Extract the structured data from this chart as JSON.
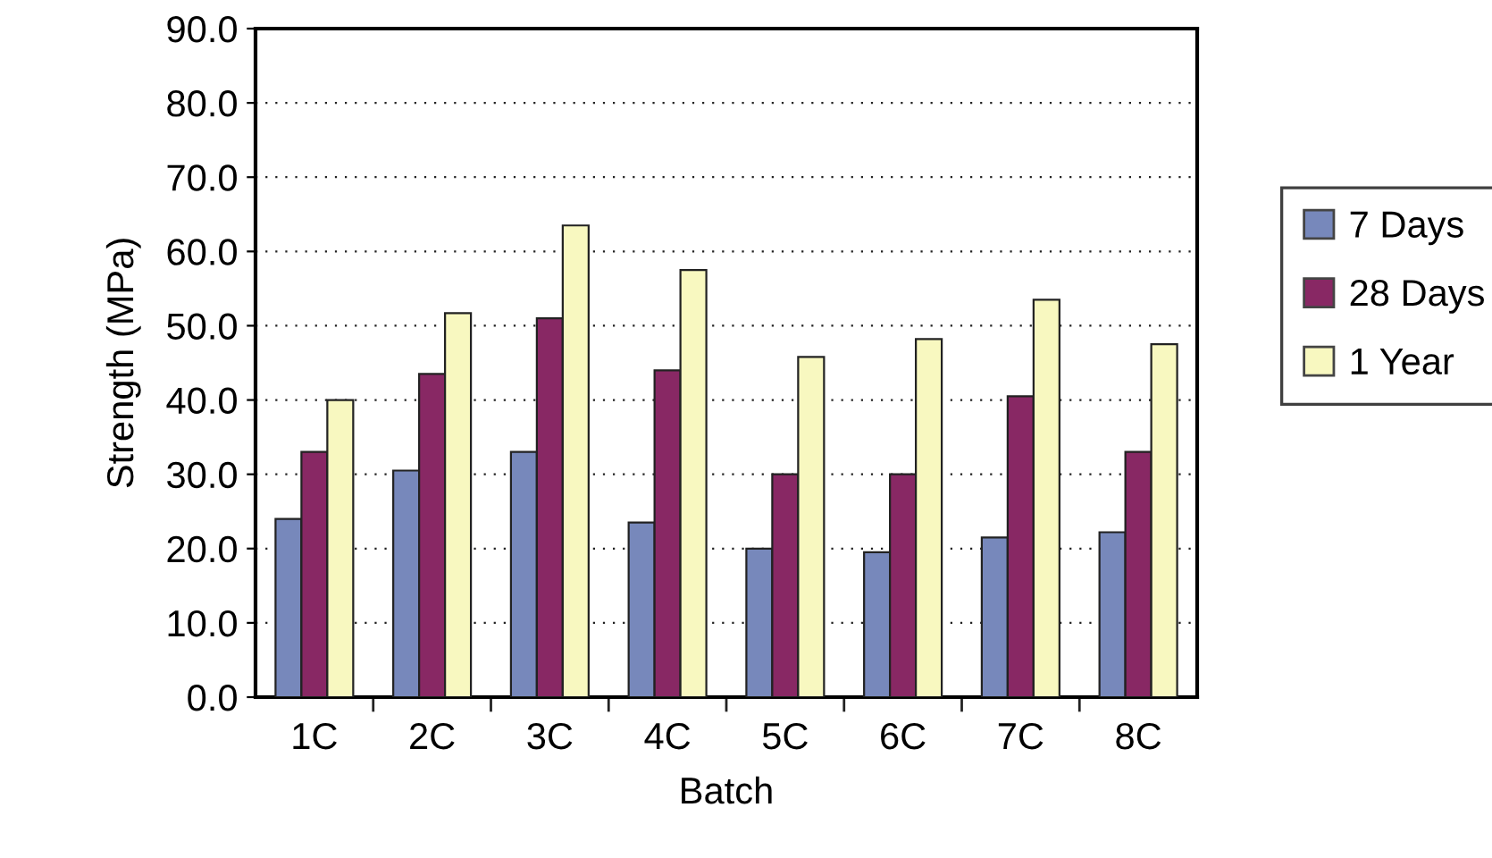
{
  "chart_data": {
    "type": "bar",
    "xlabel": "Batch",
    "ylabel": "Strength (MPa)",
    "categories": [
      "1C",
      "2C",
      "3C",
      "4C",
      "5C",
      "6C",
      "7C",
      "8C"
    ],
    "series": [
      {
        "name": "7 Days",
        "color": "#7788bb",
        "values": [
          24.0,
          30.5,
          33.0,
          23.5,
          20.0,
          19.5,
          21.5,
          22.2
        ]
      },
      {
        "name": "28 Days",
        "color": "#882864",
        "values": [
          33.0,
          43.5,
          51.0,
          44.0,
          30.0,
          30.0,
          40.5,
          33.0
        ]
      },
      {
        "name": "1 Year",
        "color": "#f8f8c0",
        "values": [
          40.0,
          51.7,
          63.5,
          57.5,
          45.8,
          48.2,
          53.5,
          47.5
        ]
      }
    ],
    "ylim": [
      0,
      90
    ],
    "yticks": [
      {
        "value": 0,
        "label": "0.0"
      },
      {
        "value": 10,
        "label": "10.0"
      },
      {
        "value": 20,
        "label": "20.0"
      },
      {
        "value": 30,
        "label": "30.0"
      },
      {
        "value": 40,
        "label": "40.0"
      },
      {
        "value": 50,
        "label": "50.0"
      },
      {
        "value": 60,
        "label": "60.0"
      },
      {
        "value": 70,
        "label": "70.0"
      },
      {
        "value": 80,
        "label": "80.0"
      },
      {
        "value": 90,
        "label": "90.0"
      }
    ],
    "grid": "y",
    "legend": "right"
  }
}
